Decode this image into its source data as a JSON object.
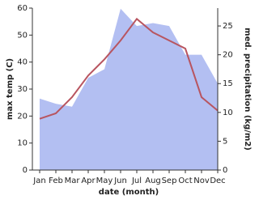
{
  "chart_data": {
    "type": "line-area",
    "x_label": "date (month)",
    "y_label": "max temp (C)",
    "y2_label": "med. precipitation (kg/m2)",
    "categories": [
      "Jan",
      "Feb",
      "Mar",
      "Apr",
      "May",
      "Jun",
      "Jul",
      "Aug",
      "Sep",
      "Oct",
      "Nov",
      "Dec"
    ],
    "series": [
      {
        "name": "max temp",
        "type": "line",
        "color": "#b85560",
        "values": [
          19,
          21,
          27,
          35,
          41,
          48,
          56,
          51,
          48,
          45,
          27,
          22
        ]
      },
      {
        "name": "med. precipitation",
        "type": "area",
        "axis": "y2",
        "color": "#b3bff2",
        "values": [
          12.4,
          11.5,
          11,
          16,
          17.5,
          28,
          25,
          25.5,
          25,
          20,
          20,
          15
        ]
      }
    ],
    "ylim": [
      0,
      60
    ],
    "yticks": [
      0,
      10,
      20,
      30,
      40,
      50,
      60
    ],
    "y2lim": [
      0,
      28.1
    ],
    "y2ticks": [
      0,
      5,
      10,
      15,
      20,
      25
    ]
  }
}
